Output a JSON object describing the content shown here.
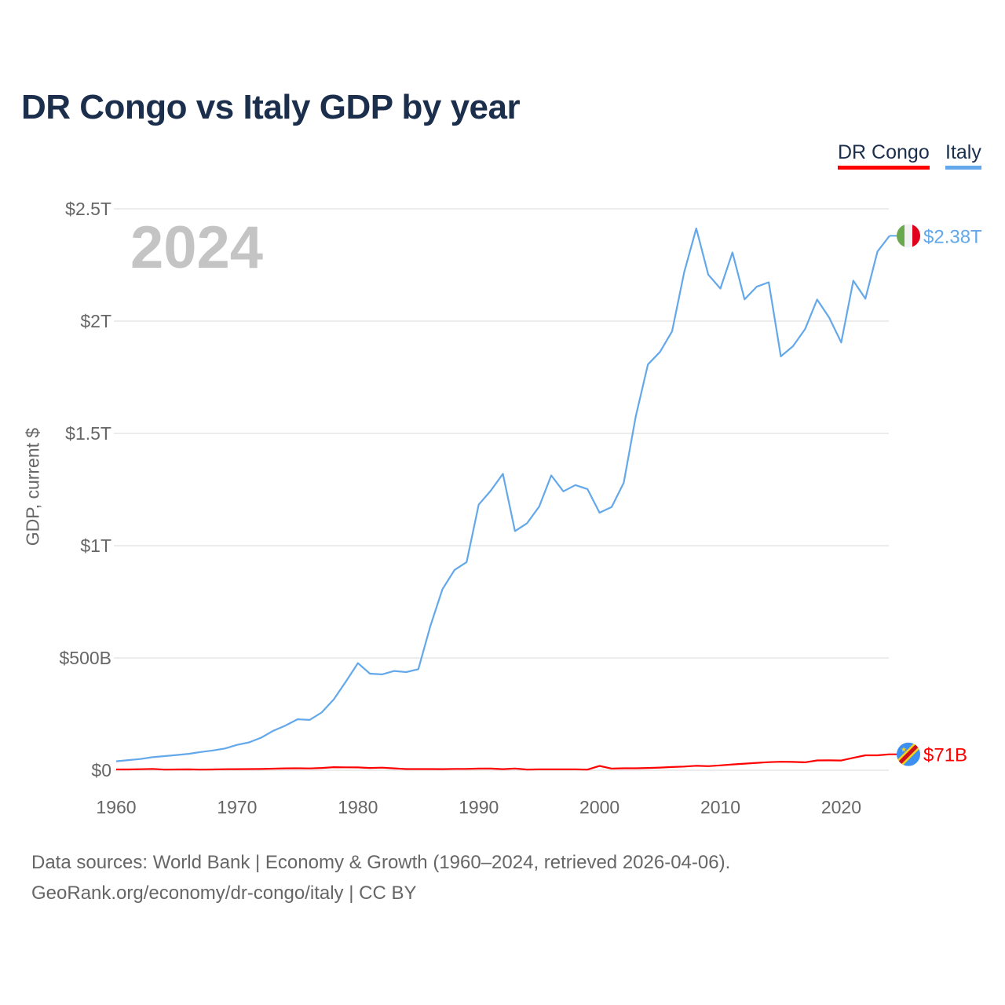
{
  "chart_data": {
    "type": "line",
    "title": "DR Congo vs Italy GDP by year",
    "ylabel": "GDP, current $",
    "xlabel": "",
    "year_label": "2024",
    "xlim": [
      1960,
      2024
    ],
    "ylim": [
      0,
      2500
    ],
    "y_unit": "billions USD",
    "x_ticks": [
      1960,
      1970,
      1980,
      1990,
      2000,
      2010,
      2020
    ],
    "y_ticks": [
      {
        "v": 0,
        "label": "$0"
      },
      {
        "v": 500,
        "label": "$500B"
      },
      {
        "v": 1000,
        "label": "$1T"
      },
      {
        "v": 1500,
        "label": "$1.5T"
      },
      {
        "v": 2000,
        "label": "$2T"
      },
      {
        "v": 2500,
        "label": "$2.5T"
      }
    ],
    "grid": true,
    "legend_placement": "top-right",
    "series": [
      {
        "name": "DR Congo",
        "color": "#ff0000",
        "end_label": "$71B",
        "flag": "dr-congo-flag",
        "values": [
          3.4,
          3.4,
          4.6,
          6.0,
          2.8,
          3.4,
          4.0,
          2.9,
          3.6,
          4.5,
          4.9,
          5.2,
          5.6,
          7.1,
          8.3,
          8.9,
          8.0,
          10.3,
          13.5,
          12.8,
          12.5,
          10.3,
          11.6,
          8.4,
          5.3,
          5.2,
          5.4,
          5.0,
          6.0,
          6.0,
          7.2,
          7.4,
          5.0,
          7.7,
          3.0,
          3.7,
          3.9,
          3.9,
          3.8,
          2.8,
          19.1,
          7.4,
          8.7,
          8.9,
          10.3,
          11.9,
          14.3,
          16.4,
          19.8,
          18.3,
          21.6,
          25.8,
          29.3,
          32.7,
          35.9,
          37.9,
          37.1,
          35.4,
          43.6,
          44.0,
          43.5,
          55.4,
          66.4,
          66.4,
          71
        ]
      },
      {
        "name": "Italy",
        "color": "#63a8ea",
        "end_label": "$2.38T",
        "flag": "italy-flag",
        "values": [
          40,
          45,
          50,
          58,
          63,
          68,
          73,
          81,
          88,
          97,
          113,
          124,
          145,
          176,
          199,
          227,
          224,
          257,
          315,
          394,
          477,
          430,
          427,
          442,
          437,
          450,
          643,
          806,
          892,
          927,
          1183,
          1245,
          1320,
          1065,
          1100,
          1174,
          1313,
          1242,
          1270,
          1252,
          1147,
          1172,
          1280,
          1577,
          1807,
          1863,
          1955,
          2218,
          2413,
          2207,
          2145,
          2306,
          2097,
          2153,
          2173,
          1843,
          1888,
          1964,
          2096,
          2016,
          1905,
          2180,
          2100,
          2310,
          2380
        ]
      }
    ]
  },
  "footer": {
    "line1": "Data sources: World Bank | Economy & Growth (1960–2024, retrieved 2026-04-06).",
    "line2": "GeoRank.org/economy/dr-congo/italy | CC BY"
  }
}
